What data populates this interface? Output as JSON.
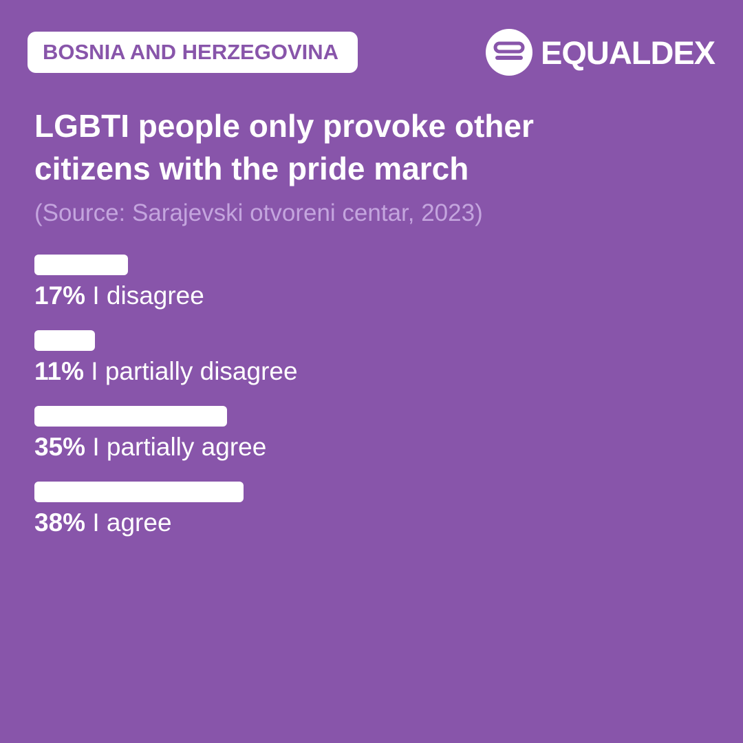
{
  "header": {
    "badge": "BOSNIA AND HERZEGOVINA",
    "brand": "EQUALDEX"
  },
  "chart_data": {
    "type": "bar",
    "orientation": "horizontal",
    "title": "LGBTI people only provoke other citizens with the pride march",
    "subtitle": "(Source: Sarajevski otvoreni centar, 2023)",
    "categories": [
      "I disagree",
      "I partially disagree",
      "I partially agree",
      "I agree"
    ],
    "values": [
      17,
      11,
      35,
      38
    ],
    "value_labels": [
      "17%",
      "11%",
      "35%",
      "38%"
    ],
    "color": "#ffffff"
  }
}
